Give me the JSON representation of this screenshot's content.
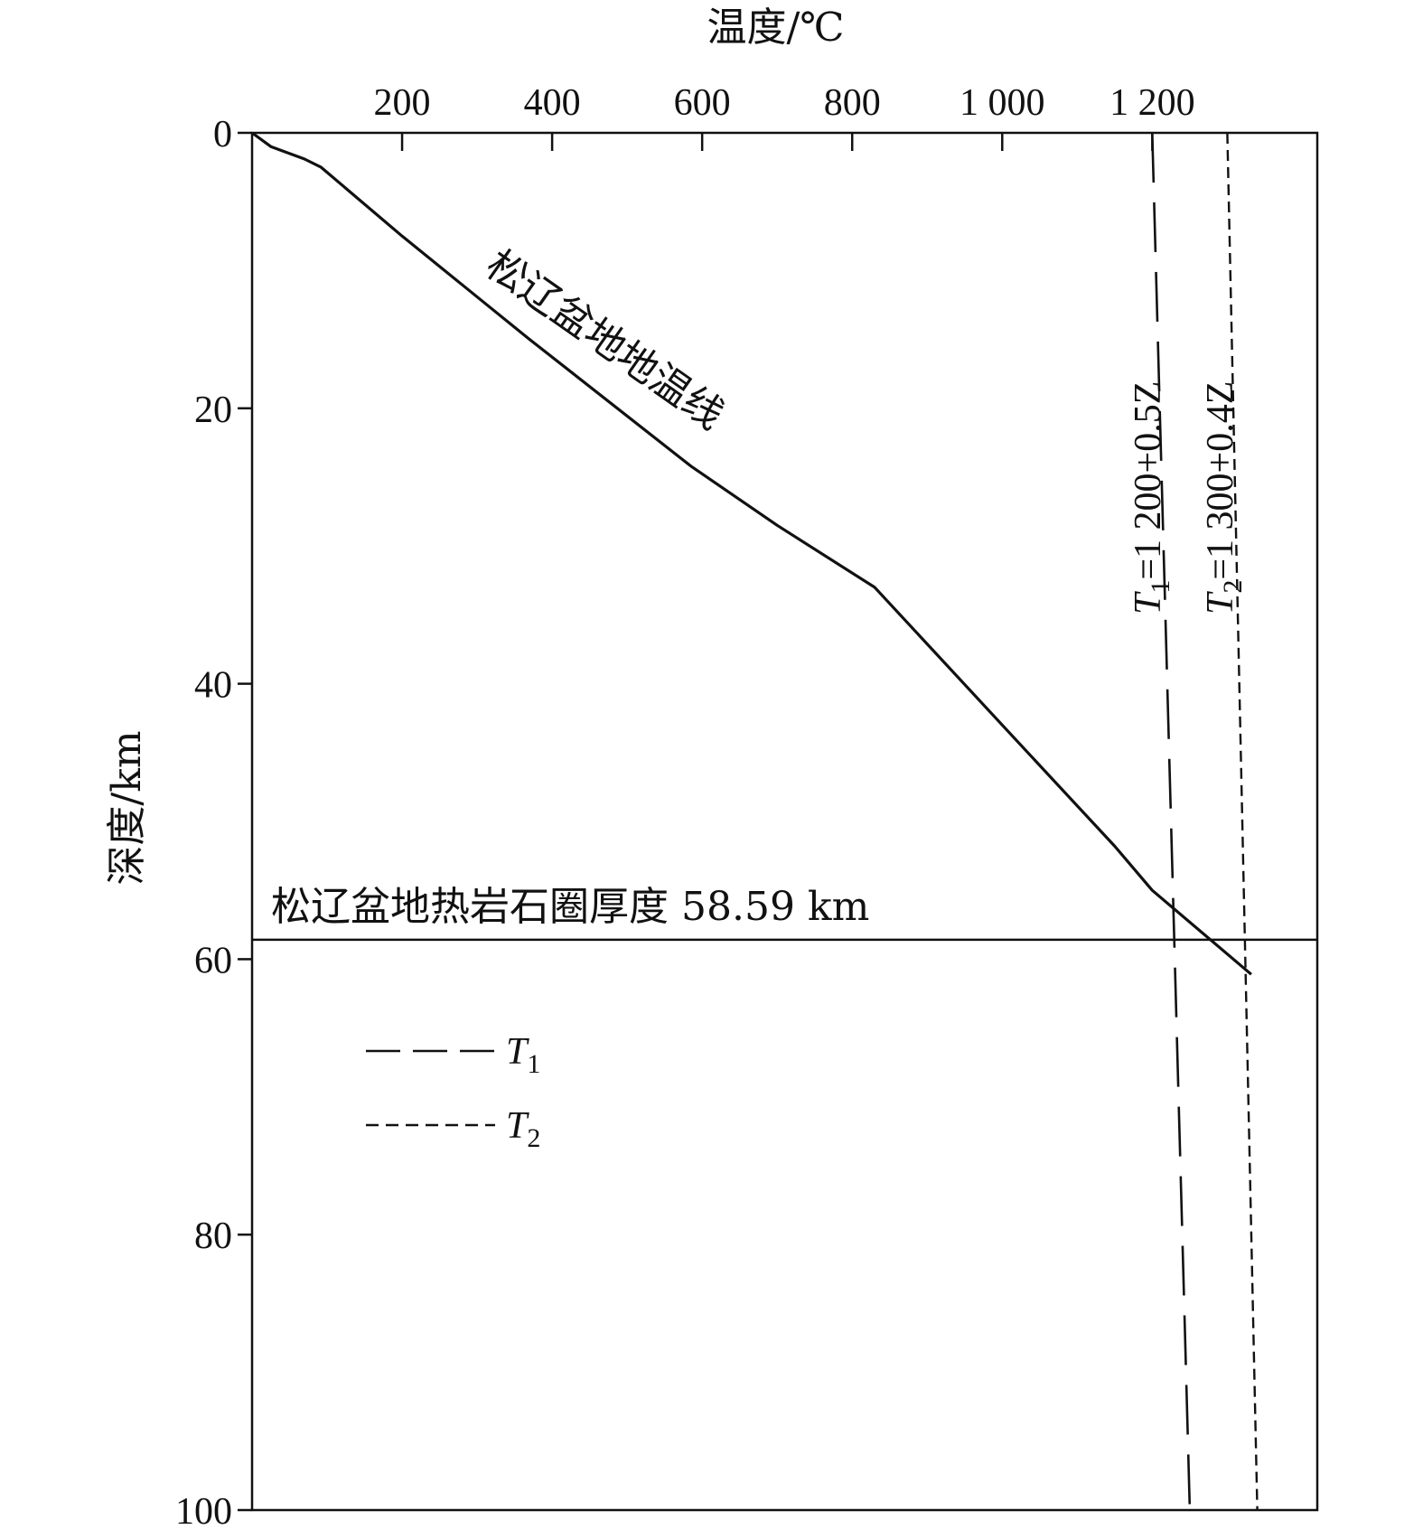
{
  "chart_data": {
    "type": "line",
    "title": "",
    "xlabel": "温度/℃",
    "ylabel": "深度/km",
    "x_axis_position": "top",
    "y_axis_inverted": true,
    "xlim": [
      0,
      1420
    ],
    "ylim": [
      0,
      100
    ],
    "x_ticks": [
      200,
      400,
      600,
      800,
      1000,
      1200
    ],
    "x_tick_labels": [
      "200",
      "400",
      "600",
      "800",
      "1 000",
      "1 200"
    ],
    "y_ticks": [
      0,
      20,
      40,
      60,
      80,
      100
    ],
    "y_tick_labels": [
      "0",
      "20",
      "40",
      "60",
      "80",
      "100"
    ],
    "grid": false,
    "legend_position": "left-middle",
    "series": [
      {
        "name": "松辽盆地地温线",
        "style": "solid",
        "points": [
          {
            "x": 0,
            "y": 0
          },
          {
            "x": 25,
            "y": 1.0
          },
          {
            "x": 50,
            "y": 1.5
          },
          {
            "x": 70,
            "y": 1.9
          },
          {
            "x": 92,
            "y": 2.5
          },
          {
            "x": 200,
            "y": 7.5
          },
          {
            "x": 370,
            "y": 15.0
          },
          {
            "x": 585,
            "y": 24.2
          },
          {
            "x": 700,
            "y": 28.5
          },
          {
            "x": 830,
            "y": 33.0
          },
          {
            "x": 1000,
            "y": 43.0
          },
          {
            "x": 1150,
            "y": 51.8
          },
          {
            "x": 1200,
            "y": 55.0
          },
          {
            "x": 1332,
            "y": 61.1
          }
        ]
      },
      {
        "name": "T1",
        "style": "long-dash",
        "formula": "T1=1 200+0.5Z",
        "points": [
          {
            "x": 1200,
            "y": 0
          },
          {
            "x": 1250,
            "y": 100
          }
        ]
      },
      {
        "name": "T2",
        "style": "short-dash",
        "formula": "T2=1 300+0.4Z",
        "points": [
          {
            "x": 1300,
            "y": 0
          },
          {
            "x": 1340,
            "y": 100
          }
        ]
      }
    ],
    "annotations": [
      {
        "text": "松辽盆地热岩石圈厚度 58.59 km",
        "type": "horizontal-line",
        "y": 58.59
      }
    ],
    "legend": [
      {
        "symbol": "T",
        "sub": "1",
        "style": "long-dash"
      },
      {
        "symbol": "T",
        "sub": "2",
        "style": "short-dash"
      }
    ],
    "formula_labels": [
      {
        "var": "T",
        "sub": "1",
        "rest": "=1 200+0.5Z"
      },
      {
        "var": "T",
        "sub": "2",
        "rest": "=1 300+0.4Z"
      }
    ]
  }
}
